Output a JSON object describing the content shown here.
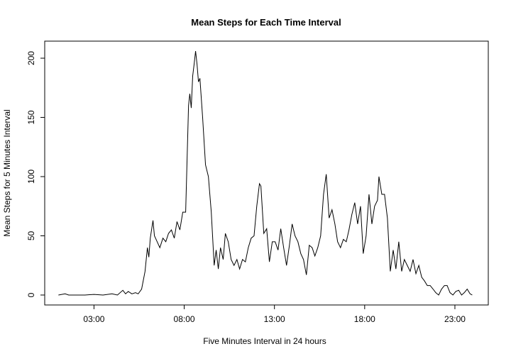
{
  "chart_data": {
    "type": "line",
    "title": "Mean Steps for Each Time Interval",
    "x_label": "Five Minutes Interval in 24 hours",
    "y_label": "Mean Steps for 5 Minutes Interval",
    "x": [
      1.03,
      1.4,
      1.6,
      2.0,
      2.5,
      3.0,
      3.5,
      4.0,
      4.3,
      4.6,
      4.75,
      4.9,
      5.1,
      5.3,
      5.45,
      5.64,
      5.83,
      5.96,
      6.04,
      6.12,
      6.27,
      6.35,
      6.5,
      6.65,
      6.82,
      6.98,
      7.13,
      7.29,
      7.45,
      7.6,
      7.76,
      7.92,
      8.08,
      8.24,
      8.31,
      8.39,
      8.47,
      8.55,
      8.63,
      8.71,
      8.79,
      8.87,
      9.02,
      9.18,
      9.34,
      9.5,
      9.66,
      9.77,
      9.89,
      10.01,
      10.16,
      10.28,
      10.44,
      10.6,
      10.76,
      10.92,
      11.07,
      11.23,
      11.39,
      11.55,
      11.71,
      11.87,
      12.02,
      12.17,
      12.25,
      12.41,
      12.57,
      12.72,
      12.88,
      13.04,
      13.2,
      13.35,
      13.51,
      13.67,
      13.83,
      13.98,
      14.14,
      14.3,
      14.46,
      14.61,
      14.77,
      14.93,
      15.09,
      15.24,
      15.4,
      15.56,
      15.72,
      15.87,
      16.03,
      16.19,
      16.35,
      16.5,
      16.66,
      16.82,
      16.98,
      17.13,
      17.29,
      17.45,
      17.61,
      17.77,
      17.92,
      18.08,
      18.24,
      18.4,
      18.55,
      18.71,
      18.79,
      18.95,
      19.1,
      19.26,
      19.42,
      19.58,
      19.73,
      19.89,
      20.05,
      20.2,
      20.36,
      20.52,
      20.68,
      20.84,
      21.0,
      21.16,
      21.31,
      21.47,
      21.63,
      21.79,
      21.94,
      22.1,
      22.26,
      22.42,
      22.57,
      22.73,
      22.89,
      23.05,
      23.21,
      23.37,
      23.52,
      23.68,
      23.84,
      23.96
    ],
    "series": [
      {
        "name": "Mean Steps",
        "color": "#000000",
        "values": [
          0,
          1,
          0,
          0,
          0,
          0.5,
          0,
          1,
          0,
          4,
          1,
          3,
          1,
          2,
          1,
          5,
          20,
          40,
          32,
          48,
          63,
          50,
          45,
          40,
          48,
          45,
          52,
          55,
          48,
          62,
          55,
          70,
          70,
          160,
          170,
          158,
          185,
          195,
          206,
          195,
          180,
          183,
          150,
          110,
          100,
          70,
          25,
          38,
          22,
          40,
          30,
          52,
          45,
          30,
          25,
          30,
          22,
          30,
          28,
          40,
          48,
          50,
          75,
          94,
          92,
          52,
          56,
          28,
          45,
          45,
          38,
          56,
          40,
          25,
          42,
          60,
          50,
          45,
          35,
          30,
          17,
          42,
          40,
          33,
          40,
          50,
          85,
          102,
          65,
          72,
          60,
          45,
          40,
          47,
          45,
          55,
          68,
          78,
          60,
          75,
          35,
          50,
          85,
          60,
          75,
          80,
          100,
          85,
          85,
          65,
          20,
          38,
          22,
          45,
          20,
          30,
          25,
          20,
          30,
          18,
          25,
          15,
          12,
          8,
          8,
          5,
          2,
          0,
          5,
          8,
          8,
          2,
          0,
          3,
          4,
          0,
          2,
          5,
          1,
          0
        ]
      }
    ],
    "xlim": [
      0.27,
      24.85
    ],
    "ylim": [
      -8.4,
      214.4
    ],
    "xticks": [
      {
        "value": 3,
        "label": "03:00"
      },
      {
        "value": 8,
        "label": "08:00"
      },
      {
        "value": 13,
        "label": "13:00"
      },
      {
        "value": 18,
        "label": "18:00"
      },
      {
        "value": 23,
        "label": "23:00"
      }
    ],
    "yticks": [
      0,
      50,
      100,
      150,
      200
    ]
  }
}
